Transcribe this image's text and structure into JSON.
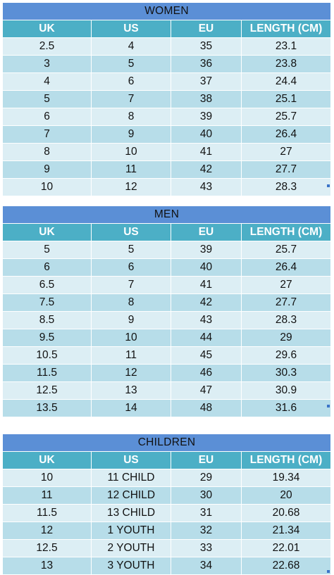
{
  "columns": [
    "UK",
    "US",
    "EU",
    "LENGTH (CM)"
  ],
  "tables": [
    {
      "title": "WOMEN",
      "rows": [
        [
          "2.5",
          "4",
          "35",
          "23.1"
        ],
        [
          "3",
          "5",
          "36",
          "23.8"
        ],
        [
          "4",
          "6",
          "37",
          "24.4"
        ],
        [
          "5",
          "7",
          "38",
          "25.1"
        ],
        [
          "6",
          "8",
          "39",
          "25.7"
        ],
        [
          "7",
          "9",
          "40",
          "26.4"
        ],
        [
          "8",
          "10",
          "41",
          "27"
        ],
        [
          "9",
          "11",
          "42",
          "27.7"
        ],
        [
          "10",
          "12",
          "43",
          "28.3"
        ]
      ]
    },
    {
      "title": "MEN",
      "rows": [
        [
          "5",
          "5",
          "39",
          "25.7"
        ],
        [
          "6",
          "6",
          "40",
          "26.4"
        ],
        [
          "6.5",
          "7",
          "41",
          "27"
        ],
        [
          "7.5",
          "8",
          "42",
          "27.7"
        ],
        [
          "8.5",
          "9",
          "43",
          "28.3"
        ],
        [
          "9.5",
          "10",
          "44",
          "29"
        ],
        [
          "10.5",
          "11",
          "45",
          "29.6"
        ],
        [
          "11.5",
          "12",
          "46",
          "30.3"
        ],
        [
          "12.5",
          "13",
          "47",
          "30.9"
        ],
        [
          "13.5",
          "14",
          "48",
          "31.6"
        ]
      ]
    },
    {
      "title": "CHILDREN",
      "rows": [
        [
          "10",
          "11 CHILD",
          "29",
          "19.34"
        ],
        [
          "11",
          "12 CHILD",
          "30",
          "20"
        ],
        [
          "11.5",
          "13 CHILD",
          "31",
          "20.68"
        ],
        [
          "12",
          "1 YOUTH",
          "32",
          "21.34"
        ],
        [
          "12.5",
          "2 YOUTH",
          "33",
          "22.01"
        ],
        [
          "13",
          "3 YOUTH",
          "34",
          "22.68"
        ]
      ]
    }
  ],
  "colors": {
    "title_bg": "#5b8fd6",
    "header_bg": "#4cafc6",
    "row_light": "#dceef4",
    "row_dark": "#b7dde9"
  }
}
